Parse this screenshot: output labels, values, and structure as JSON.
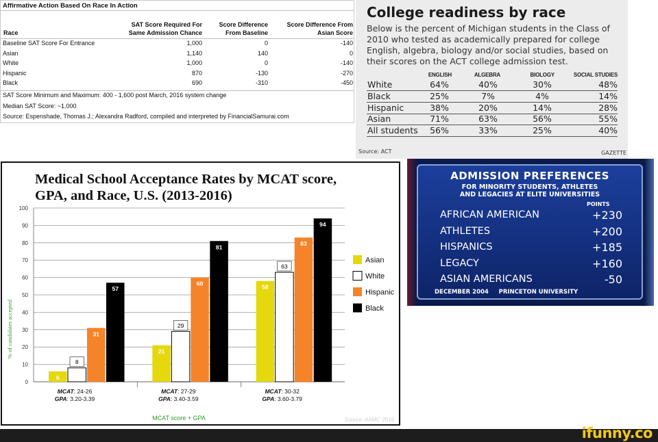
{
  "table_panel": {
    "title": "Affirmative Action Based On Race In Action",
    "headers": {
      "race": "Race",
      "sat_line1": "SAT Score Required For",
      "sat_line2": "Same Admission Chance",
      "diff_line1": "Score Difference",
      "diff_line2": "From Baseline",
      "asian_line1": "Score Difference From",
      "asian_line2": "Asian Score"
    },
    "rows": [
      {
        "race": "Baseline SAT Score For Entrance",
        "sat": "1,000",
        "diff": "0",
        "asian_diff": "-140"
      },
      {
        "race": "Asian",
        "sat": "1,140",
        "diff": "140",
        "asian_diff": "0"
      },
      {
        "race": "White",
        "sat": "1,000",
        "diff": "0",
        "asian_diff": "-140"
      },
      {
        "race": "Hispanic",
        "sat": "870",
        "diff": "-130",
        "asian_diff": "-270"
      },
      {
        "race": "Black",
        "sat": "690",
        "diff": "-310",
        "asian_diff": "-450"
      }
    ],
    "notes": [
      "SAT Score Minimum and Maximum: 400 - 1,600 post March, 2016 system change",
      "Median SAT Score: ~1,000",
      "Source: Espenshade, Thomas J.; Alexandra Radford, compiled and interpreted by FinancialSamurai.com"
    ]
  },
  "gazette_panel": {
    "title": "College readiness by race",
    "description": "Below is the percent of Michigan students in the Class of 2010 who tested as academically  prepared for college English, algebra, biology and/or social studies, based on their scores on the ACT college admission test.",
    "columns": [
      "ENGLISH",
      "ALGEBRA",
      "BIOLOGY",
      "SOCIAL STUDIES"
    ],
    "rows": [
      {
        "group": "White",
        "values": [
          "64%",
          "40%",
          "30%",
          "48%"
        ]
      },
      {
        "group": "Black",
        "values": [
          "25%",
          "7%",
          "4%",
          "14%"
        ]
      },
      {
        "group": "Hispanic",
        "values": [
          "38%",
          "20%",
          "14%",
          "28%"
        ]
      },
      {
        "group": "Asian",
        "values": [
          "71%",
          "63%",
          "56%",
          "55%"
        ]
      },
      {
        "group": "All students",
        "values": [
          "56%",
          "33%",
          "25%",
          "40%"
        ]
      }
    ],
    "source": "Source: ACT",
    "brand": "GAZETTE"
  },
  "chart_panel": {
    "title_line1": "Medical School Acceptance Rates by MCAT score,",
    "title_line2": "GPA, and Race, U.S. (2013-2016)",
    "source": "Source: AAMC 2016"
  },
  "chart_data": {
    "type": "bar",
    "title": "Medical School Acceptance Rates by MCAT score, GPA, and Race, U.S. (2013-2016)",
    "xlabel": "MCAT score + GPA",
    "ylabel": "% of candidates accepted",
    "ylim": [
      0,
      100
    ],
    "yticks": [
      0,
      10,
      20,
      30,
      40,
      50,
      60,
      70,
      80,
      90,
      100
    ],
    "categories": [
      {
        "mcat_label": "MCAT",
        "mcat": ": 24-26",
        "gpa_label": "GPA",
        "gpa": ": 3.20-3.39"
      },
      {
        "mcat_label": "MCAT",
        "mcat": ": 27-29",
        "gpa_label": "GPA",
        "gpa": ": 3.40-3.59"
      },
      {
        "mcat_label": "MCAT",
        "mcat": ": 30-32",
        "gpa_label": "GPA",
        "gpa": ": 3.60-3.79"
      }
    ],
    "series": [
      {
        "name": "Asian",
        "color": "#e5d80c",
        "values": [
          6,
          21,
          58
        ]
      },
      {
        "name": "White",
        "color": "#ffffff",
        "values": [
          8,
          29,
          63
        ]
      },
      {
        "name": "Hispanic",
        "color": "#f5832a",
        "values": [
          31,
          60,
          83
        ]
      },
      {
        "name": "Black",
        "color": "#000000",
        "values": [
          57,
          81,
          94
        ]
      }
    ],
    "grid": true,
    "legend": "right"
  },
  "chyron_panel": {
    "title": "ADMISSION PREFERENCES",
    "subtitle_line1": "FOR MINORITY STUDENTS, ATHLETES",
    "subtitle_line2": "AND LEGACIES AT ELITE UNIVERSITIES",
    "points_label": "POINTS",
    "rows": [
      {
        "label": "AFRICAN AMERICAN",
        "value": "+230"
      },
      {
        "label": "ATHLETES",
        "value": "+200"
      },
      {
        "label": "HISPANICS",
        "value": "+185"
      },
      {
        "label": "LEGACY",
        "value": "+160"
      },
      {
        "label": "ASIAN AMERICANS",
        "value": "-50"
      }
    ],
    "footer_date": "DECEMBER 2004",
    "footer_source": "PRINCETON UNIVERSITY"
  },
  "footer": {
    "logo": "ifunny.co"
  }
}
